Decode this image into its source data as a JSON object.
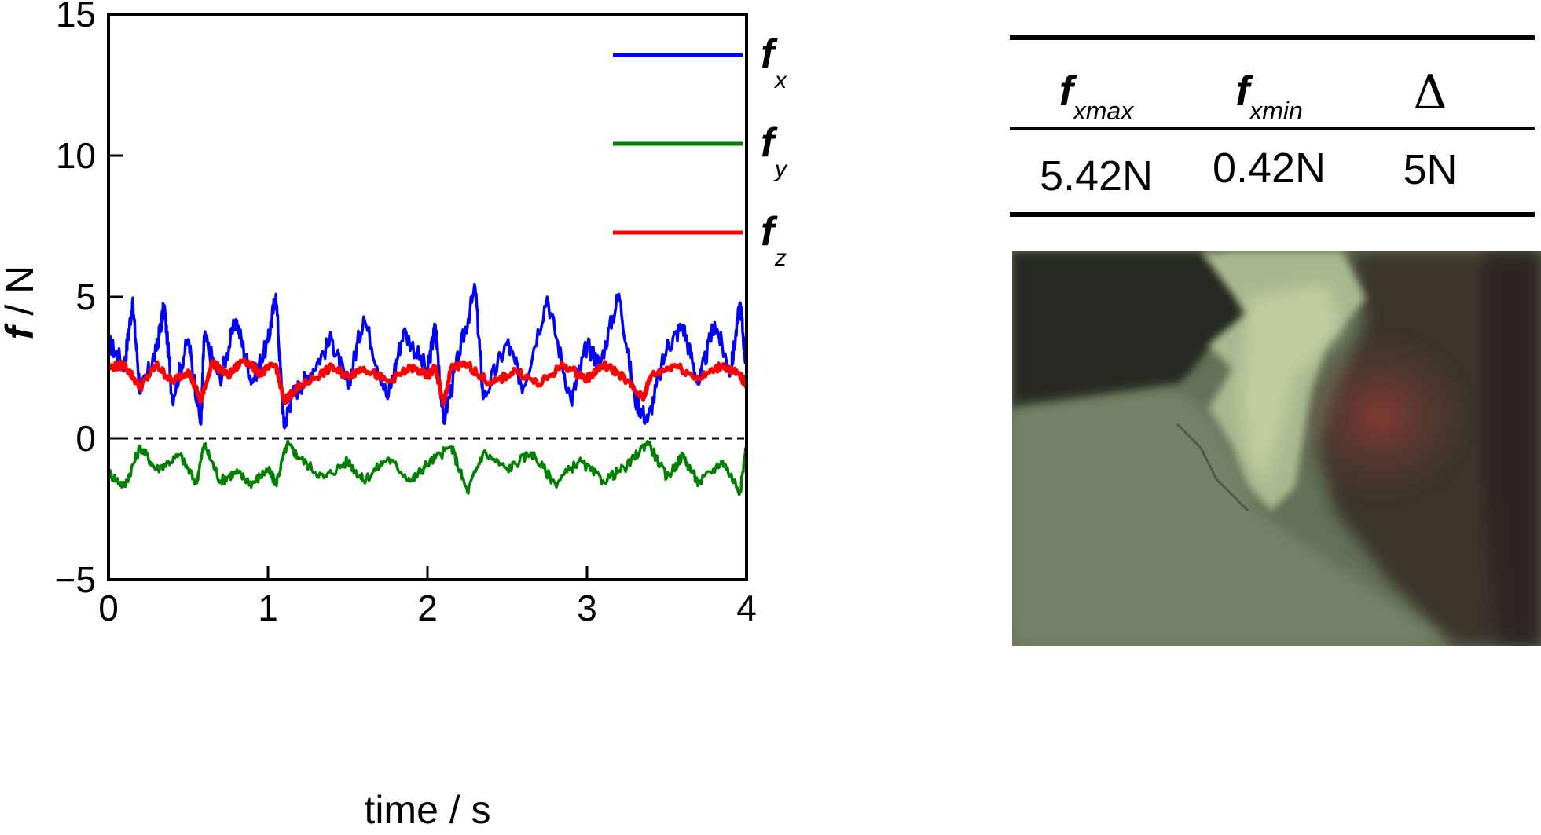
{
  "chart_data": {
    "type": "line",
    "xlabel": "time / s",
    "ylabel": "f / N",
    "xlim": [
      0,
      4
    ],
    "ylim": [
      -5,
      15
    ],
    "xticks": [
      0,
      1,
      2,
      3,
      4
    ],
    "yticks": [
      -5,
      0,
      5,
      10,
      15
    ],
    "xtick_labels": [
      "0",
      "1",
      "2",
      "3",
      "4"
    ],
    "ytick_labels": [
      "−5",
      "0",
      "5",
      "10",
      "15"
    ],
    "zero_line": "dashed",
    "legend_position": "top-right",
    "series": [
      {
        "name": "f_x",
        "color": "#0000ff",
        "x": [
          0,
          0.1,
          0.15,
          0.2,
          0.3,
          0.35,
          0.4,
          0.5,
          0.58,
          0.6,
          0.7,
          0.8,
          0.9,
          1.0,
          1.05,
          1.1,
          1.15,
          1.25,
          1.4,
          1.5,
          1.6,
          1.75,
          1.85,
          2.0,
          2.05,
          2.1,
          2.2,
          2.3,
          2.35,
          2.5,
          2.6,
          2.75,
          2.9,
          3.0,
          3.08,
          3.2,
          3.3,
          3.38,
          3.5,
          3.6,
          3.7,
          3.8,
          3.9,
          3.96,
          4.0
        ],
        "values": [
          3.4,
          2.6,
          4.8,
          1.6,
          3.1,
          4.7,
          1.4,
          3.5,
          0.5,
          3.6,
          2.1,
          4.2,
          2.0,
          3.4,
          5.1,
          0.4,
          1.5,
          2.2,
          3.5,
          1.8,
          4.3,
          1.4,
          3.8,
          2.4,
          4.0,
          0.6,
          3.0,
          5.3,
          1.4,
          3.4,
          1.8,
          5.0,
          1.3,
          3.3,
          2.6,
          5.1,
          1.4,
          0.6,
          3.2,
          4.0,
          1.9,
          4.1,
          2.3,
          4.8,
          2.4
        ]
      },
      {
        "name": "f_y",
        "color": "#008000",
        "x": [
          0,
          0.1,
          0.2,
          0.3,
          0.45,
          0.55,
          0.6,
          0.7,
          0.8,
          0.9,
          1.0,
          1.05,
          1.12,
          1.2,
          1.35,
          1.5,
          1.6,
          1.75,
          1.9,
          2.0,
          2.15,
          2.25,
          2.35,
          2.5,
          2.65,
          2.8,
          2.95,
          3.1,
          3.25,
          3.38,
          3.5,
          3.6,
          3.7,
          3.85,
          3.96,
          4.0
        ],
        "values": [
          -1.2,
          -1.7,
          -0.3,
          -1.1,
          -0.6,
          -1.6,
          -0.2,
          -1.5,
          -1.2,
          -1.6,
          -1.1,
          -1.6,
          -0.2,
          -0.7,
          -1.4,
          -0.8,
          -1.5,
          -0.7,
          -1.5,
          -0.9,
          -0.3,
          -1.9,
          -0.5,
          -1.1,
          -0.5,
          -1.6,
          -0.8,
          -1.5,
          -1.0,
          -0.1,
          -1.4,
          -0.6,
          -1.6,
          -0.8,
          -1.9,
          -0.2
        ]
      },
      {
        "name": "f_z",
        "color": "#ff0000",
        "x": [
          0,
          0.1,
          0.2,
          0.3,
          0.4,
          0.5,
          0.58,
          0.65,
          0.75,
          0.85,
          0.95,
          1.05,
          1.1,
          1.15,
          1.25,
          1.4,
          1.5,
          1.6,
          1.75,
          1.9,
          2.0,
          2.05,
          2.1,
          2.15,
          2.25,
          2.4,
          2.55,
          2.7,
          2.85,
          3.0,
          3.1,
          3.2,
          3.35,
          3.4,
          3.55,
          3.7,
          3.85,
          3.96,
          4.0
        ],
        "values": [
          2.5,
          2.6,
          1.8,
          2.6,
          2.0,
          2.4,
          1.3,
          2.7,
          2.2,
          2.8,
          2.3,
          2.6,
          1.3,
          1.6,
          2.0,
          2.5,
          2.2,
          2.5,
          2.0,
          2.5,
          2.2,
          2.5,
          1.2,
          2.5,
          2.6,
          1.9,
          2.4,
          1.9,
          2.6,
          2.1,
          2.6,
          2.3,
          1.4,
          2.2,
          2.6,
          2.1,
          2.6,
          2.2,
          1.9
        ]
      }
    ]
  },
  "legend": [
    {
      "base": "f",
      "sub": "x",
      "color": "#0000ff"
    },
    {
      "base": "f",
      "sub": "y",
      "color": "#008000"
    },
    {
      "base": "f",
      "sub": "z",
      "color": "#ff0000"
    }
  ],
  "table": {
    "headers": [
      {
        "base": "f",
        "sub": "xmax"
      },
      {
        "base": "f",
        "sub": "xmin"
      },
      {
        "symbol": "Δ"
      }
    ],
    "values": [
      "5.42N",
      "0.42N",
      "5N"
    ]
  }
}
